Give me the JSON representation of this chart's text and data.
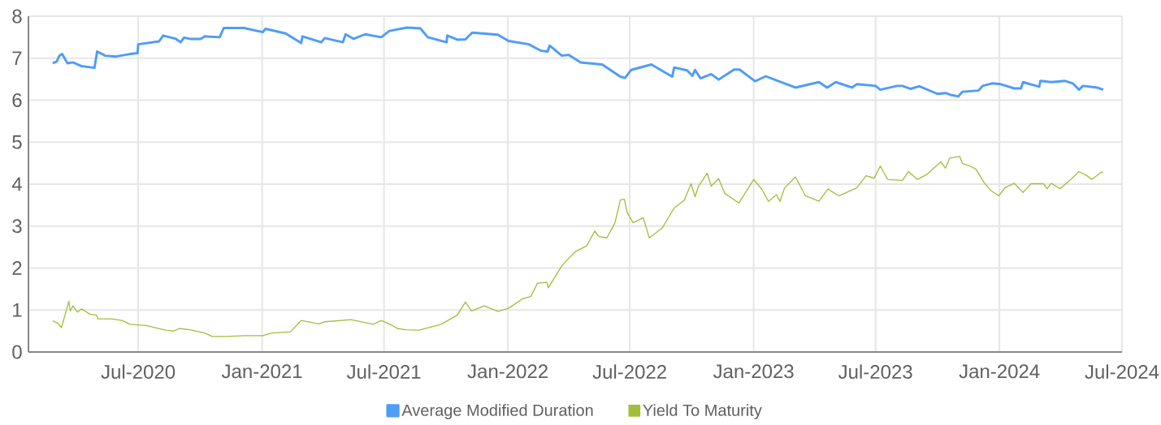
{
  "chart_data": {
    "type": "line",
    "xlim": [
      "2020-01-20",
      "2024-07-01"
    ],
    "xticks": [
      {
        "value": "2020-07-01",
        "label": "Jul-2020"
      },
      {
        "value": "2021-01-01",
        "label": "Jan-2021"
      },
      {
        "value": "2021-07-01",
        "label": "Jul-2021"
      },
      {
        "value": "2022-01-01",
        "label": "Jan-2022"
      },
      {
        "value": "2022-07-01",
        "label": "Jul-2022"
      },
      {
        "value": "2023-01-01",
        "label": "Jan-2023"
      },
      {
        "value": "2023-07-01",
        "label": "Jul-2023"
      },
      {
        "value": "2024-01-01",
        "label": "Jan-2024"
      },
      {
        "value": "2024-07-01",
        "label": "Jul-2024"
      }
    ],
    "ylim": [
      0,
      8
    ],
    "yticks": [
      0,
      1,
      2,
      3,
      4,
      5,
      6,
      7,
      8
    ],
    "grid": true,
    "legend": "bottom",
    "series": [
      {
        "name": "Average Modified Duration",
        "color": "#4f9cf9",
        "x": [
          "2020-02-25",
          "2020-03-02",
          "2020-03-06",
          "2020-03-10",
          "2020-03-18",
          "2020-03-26",
          "2020-04-08",
          "2020-04-27",
          "2020-05-01",
          "2020-05-13",
          "2020-05-29",
          "2020-06-19",
          "2020-06-30",
          "2020-07-01",
          "2020-08-01",
          "2020-08-07",
          "2020-08-26",
          "2020-09-02",
          "2020-09-07",
          "2020-09-16",
          "2020-10-02",
          "2020-10-08",
          "2020-10-30",
          "2020-11-05",
          "2020-12-05",
          "2021-01-02",
          "2021-01-06",
          "2021-02-05",
          "2021-02-28",
          "2021-03-02",
          "2021-03-30",
          "2021-04-04",
          "2021-05-01",
          "2021-05-05",
          "2021-05-17",
          "2021-06-03",
          "2021-06-27",
          "2021-07-09",
          "2021-08-04",
          "2021-08-24",
          "2021-09-04",
          "2021-10-02",
          "2021-10-03",
          "2021-10-18",
          "2021-10-30",
          "2021-11-09",
          "2021-12-17",
          "2022-01-02",
          "2022-02-01",
          "2022-02-19",
          "2022-03-01",
          "2022-03-04",
          "2022-03-22",
          "2022-04-01",
          "2022-04-19",
          "2022-05-21",
          "2022-06-17",
          "2022-06-24",
          "2022-07-03",
          "2022-08-02",
          "2022-09-02",
          "2022-09-05",
          "2022-09-24",
          "2022-10-02",
          "2022-10-06",
          "2022-10-14",
          "2022-10-30",
          "2022-11-10",
          "2022-12-03",
          "2022-12-11",
          "2023-01-03",
          "2023-01-19",
          "2023-02-04",
          "2023-03-04",
          "2023-04-08",
          "2023-04-20",
          "2023-05-03",
          "2023-05-27",
          "2023-06-03",
          "2023-07-01",
          "2023-07-08",
          "2023-08-02",
          "2023-08-10",
          "2023-08-22",
          "2023-09-04",
          "2023-10-01",
          "2023-10-13",
          "2023-10-22",
          "2023-11-01",
          "2023-11-07",
          "2023-12-01",
          "2023-12-07",
          "2023-12-21",
          "2024-01-03",
          "2024-01-23",
          "2024-02-02",
          "2024-02-05",
          "2024-02-29",
          "2024-03-02",
          "2024-03-18",
          "2024-04-07",
          "2024-04-19",
          "2024-04-28",
          "2024-05-04",
          "2024-05-25",
          "2024-06-03"
        ],
        "values": [
          6.88,
          6.92,
          7.06,
          7.1,
          6.88,
          6.9,
          6.81,
          6.77,
          7.16,
          7.06,
          7.04,
          7.1,
          7.12,
          7.33,
          7.4,
          7.54,
          7.46,
          7.38,
          7.49,
          7.46,
          7.46,
          7.52,
          7.5,
          7.72,
          7.72,
          7.62,
          7.7,
          7.59,
          7.36,
          7.52,
          7.38,
          7.48,
          7.38,
          7.57,
          7.46,
          7.57,
          7.5,
          7.65,
          7.73,
          7.71,
          7.5,
          7.38,
          7.54,
          7.44,
          7.45,
          7.61,
          7.56,
          7.41,
          7.33,
          7.18,
          7.16,
          7.3,
          7.06,
          7.08,
          6.9,
          6.85,
          6.56,
          6.53,
          6.72,
          6.85,
          6.56,
          6.78,
          6.71,
          6.58,
          6.72,
          6.52,
          6.62,
          6.49,
          6.73,
          6.73,
          6.45,
          6.57,
          6.47,
          6.3,
          6.43,
          6.3,
          6.43,
          6.3,
          6.38,
          6.34,
          6.25,
          6.34,
          6.34,
          6.27,
          6.33,
          6.15,
          6.17,
          6.12,
          6.09,
          6.2,
          6.23,
          6.34,
          6.4,
          6.38,
          6.28,
          6.28,
          6.43,
          6.32,
          6.46,
          6.43,
          6.46,
          6.4,
          6.25,
          6.34,
          6.3,
          6.25
        ]
      },
      {
        "name": "Yield To Maturity",
        "color": "#a3be3a",
        "x": [
          "2020-02-25",
          "2020-03-03",
          "2020-03-09",
          "2020-03-15",
          "2020-03-20",
          "2020-03-22",
          "2020-03-26",
          "2020-04-02",
          "2020-04-08",
          "2020-04-20",
          "2020-04-30",
          "2020-05-02",
          "2020-05-22",
          "2020-06-07",
          "2020-06-19",
          "2020-07-13",
          "2020-08-11",
          "2020-08-23",
          "2020-08-31",
          "2020-09-16",
          "2020-10-08",
          "2020-10-19",
          "2020-11-08",
          "2020-12-05",
          "2021-01-02",
          "2021-01-15",
          "2021-02-12",
          "2021-02-28",
          "2021-03-26",
          "2021-04-04",
          "2021-05-13",
          "2021-06-15",
          "2021-06-27",
          "2021-07-10",
          "2021-07-21",
          "2021-08-03",
          "2021-08-22",
          "2021-09-24",
          "2021-10-18",
          "2021-10-30",
          "2021-11-08",
          "2021-11-27",
          "2021-12-17",
          "2022-01-02",
          "2022-01-23",
          "2022-02-04",
          "2022-02-14",
          "2022-02-28",
          "2022-03-02",
          "2022-03-22",
          "2022-03-31",
          "2022-04-12",
          "2022-04-28",
          "2022-05-10",
          "2022-05-16",
          "2022-05-28",
          "2022-06-09",
          "2022-06-17",
          "2022-06-23",
          "2022-06-27",
          "2022-07-06",
          "2022-07-21",
          "2022-07-30",
          "2022-08-18",
          "2022-09-05",
          "2022-09-20",
          "2022-09-30",
          "2022-10-06",
          "2022-10-11",
          "2022-10-24",
          "2022-10-30",
          "2022-11-10",
          "2022-11-19",
          "2022-12-10",
          "2023-01-01",
          "2023-01-13",
          "2023-01-23",
          "2023-02-04",
          "2023-02-09",
          "2023-02-16",
          "2023-03-04",
          "2023-03-19",
          "2023-04-08",
          "2023-04-21",
          "2023-05-08",
          "2023-06-03",
          "2023-06-17",
          "2023-06-29",
          "2023-07-08",
          "2023-07-19",
          "2023-08-10",
          "2023-08-19",
          "2023-09-01",
          "2023-09-16",
          "2023-10-06",
          "2023-10-13",
          "2023-10-19",
          "2023-11-03",
          "2023-11-07",
          "2023-11-18",
          "2023-11-27",
          "2023-12-03",
          "2023-12-09",
          "2023-12-19",
          "2023-12-31",
          "2024-01-09",
          "2024-01-23",
          "2024-02-05",
          "2024-02-17",
          "2024-03-06",
          "2024-03-12",
          "2024-03-18",
          "2024-03-31",
          "2024-04-16",
          "2024-04-28",
          "2024-05-10",
          "2024-05-17",
          "2024-06-01",
          "2024-06-03"
        ],
        "values": [
          0.74,
          0.69,
          0.58,
          0.92,
          1.21,
          0.98,
          1.1,
          0.95,
          1.03,
          0.9,
          0.88,
          0.79,
          0.79,
          0.75,
          0.66,
          0.63,
          0.52,
          0.5,
          0.56,
          0.53,
          0.45,
          0.37,
          0.37,
          0.39,
          0.39,
          0.45,
          0.48,
          0.75,
          0.67,
          0.72,
          0.77,
          0.66,
          0.75,
          0.66,
          0.56,
          0.53,
          0.52,
          0.66,
          0.88,
          1.19,
          0.98,
          1.1,
          0.97,
          1.04,
          1.27,
          1.32,
          1.64,
          1.66,
          1.53,
          2.05,
          2.21,
          2.4,
          2.53,
          2.88,
          2.75,
          2.72,
          3.08,
          3.62,
          3.64,
          3.33,
          3.08,
          3.2,
          2.72,
          2.95,
          3.43,
          3.62,
          4.01,
          3.7,
          3.95,
          4.26,
          3.95,
          4.13,
          3.78,
          3.55,
          4.11,
          3.88,
          3.59,
          3.75,
          3.59,
          3.91,
          4.17,
          3.72,
          3.59,
          3.88,
          3.72,
          3.91,
          4.2,
          4.14,
          4.43,
          4.11,
          4.09,
          4.3,
          4.11,
          4.24,
          4.53,
          4.38,
          4.62,
          4.66,
          4.49,
          4.43,
          4.36,
          4.2,
          4.04,
          3.85,
          3.72,
          3.91,
          4.02,
          3.8,
          4.01,
          4.01,
          3.89,
          4.02,
          3.89,
          4.11,
          4.3,
          4.2,
          4.11,
          4.29,
          4.27
        ]
      }
    ]
  }
}
